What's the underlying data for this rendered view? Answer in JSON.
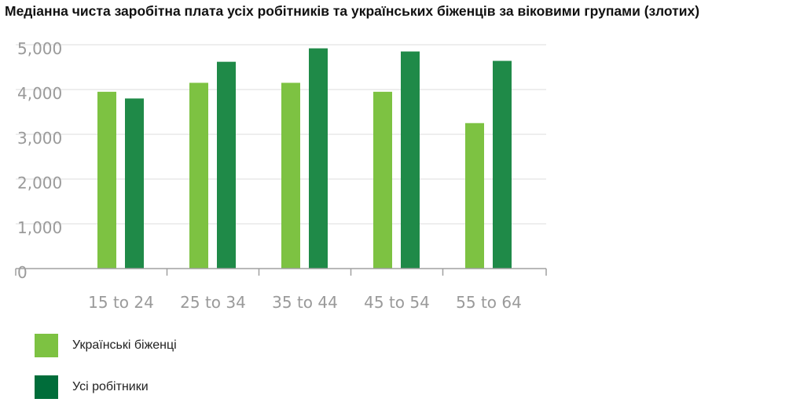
{
  "chart_data": {
    "type": "bar",
    "title": "Медіанна чиста заробітна плата усіх робітників та українських біженців за віковими групами (злотих)",
    "categories": [
      "15 to 24",
      "25 to 34",
      "35 to 44",
      "45 to 54",
      "55 to 64"
    ],
    "series": [
      {
        "name": "Українські біженці",
        "values": [
          3950,
          4150,
          4150,
          3950,
          3250
        ],
        "color": "#7dc242"
      },
      {
        "name": "Усі робітники",
        "values": [
          3800,
          4620,
          4920,
          4850,
          4640
        ],
        "color": "#1f8a48"
      }
    ],
    "yticks": [
      "0",
      "1,000",
      "2,000",
      "3,000",
      "4,000",
      "5,000"
    ],
    "ylim": [
      0,
      5000
    ],
    "grid": true,
    "legend_position": "bottom-left",
    "legend_swatch_colors": [
      "#7dc242",
      "#006d3a"
    ]
  }
}
